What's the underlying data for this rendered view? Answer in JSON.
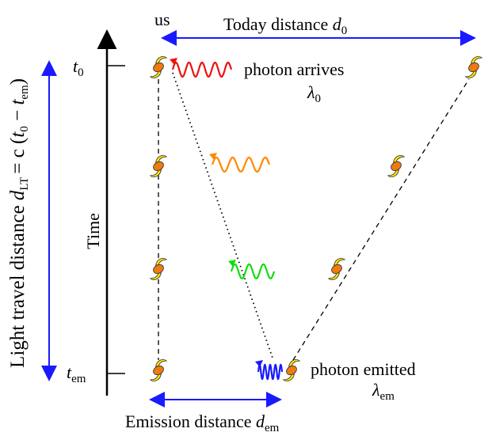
{
  "axis": {
    "title": "Time",
    "top_tick": {
      "symbol": "t",
      "subscript": "0"
    },
    "bottom_tick": {
      "symbol": "t",
      "subscript": "em"
    }
  },
  "observer": {
    "label": "us"
  },
  "today_distance": {
    "text": "Today distance",
    "symbol": "d",
    "subscript": "0"
  },
  "emission_distance": {
    "text": "Emission distance",
    "symbol": "d",
    "subscript": "em"
  },
  "light_travel": {
    "text": "Light travel distance",
    "symbol": "d",
    "subscript": "LT",
    "equals": "= c (",
    "t0": "t",
    "t0_sub": "0",
    "minus": " − ",
    "tem": "t",
    "tem_sub": "em",
    "close": ")"
  },
  "arrival": {
    "text": "photon arrives",
    "symbol": "λ",
    "subscript": "0"
  },
  "emission": {
    "text": "photon emitted",
    "symbol": "λ",
    "subscript": "em"
  }
}
